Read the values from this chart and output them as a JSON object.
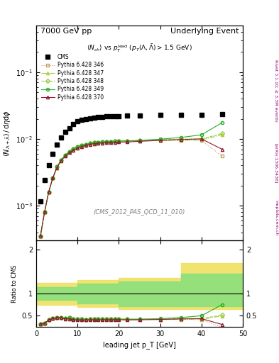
{
  "title_left": "7000 GeV pp",
  "title_right": "Underlying Event",
  "subtitle": "<N_{ch}> vs p_T^{lead} (p_T(Λ,Λ̅) > 1.5 GeV)",
  "watermark": "(CMS_2012_PAS_QCD_11_010)",
  "right_label": "Rivet 3.1.10; ≥ 3.3M events",
  "arxiv_label": "[arXiv:1306.3436]",
  "mcplots_label": "mcplots.cern.ch",
  "ylabel_main": "<N_{Λ+Λ̅}> / dηdφ",
  "ylabel_ratio": "Ratio to CMS",
  "xlabel": "leading jet p_T [GeV]",
  "xlim": [
    0,
    50
  ],
  "ylim_main": [
    0.0003,
    0.5
  ],
  "ylim_ratio": [
    0.25,
    2.2
  ],
  "cms_x": [
    1,
    2,
    3,
    4,
    5,
    6,
    7,
    8,
    9,
    10,
    11,
    12,
    13,
    14,
    15,
    16,
    17,
    18,
    19,
    20,
    22,
    25,
    30,
    35,
    40,
    45
  ],
  "cms_y": [
    0.00115,
    0.0024,
    0.004,
    0.006,
    0.0082,
    0.0105,
    0.0128,
    0.0145,
    0.0167,
    0.0182,
    0.0192,
    0.02,
    0.0205,
    0.021,
    0.0213,
    0.0215,
    0.0216,
    0.0217,
    0.0218,
    0.022,
    0.0223,
    0.0226,
    0.0229,
    0.023,
    0.0231,
    0.0233
  ],
  "p346_x": [
    1,
    2,
    3,
    4,
    5,
    6,
    7,
    8,
    9,
    10,
    11,
    12,
    13,
    14,
    15,
    16,
    17,
    18,
    19,
    20,
    22,
    25,
    30,
    35,
    40,
    45
  ],
  "p346_y": [
    0.00035,
    0.0008,
    0.0016,
    0.0026,
    0.0038,
    0.0048,
    0.0057,
    0.0065,
    0.0071,
    0.0076,
    0.008,
    0.0083,
    0.0086,
    0.0088,
    0.0089,
    0.009,
    0.0091,
    0.00915,
    0.0092,
    0.00925,
    0.0093,
    0.00935,
    0.0094,
    0.00945,
    0.0095,
    0.0055
  ],
  "p346_color": "#c8a060",
  "p346_marker": "s",
  "p346_style": "dotted",
  "p347_x": [
    1,
    2,
    3,
    4,
    5,
    6,
    7,
    8,
    9,
    10,
    11,
    12,
    13,
    14,
    15,
    16,
    17,
    18,
    19,
    20,
    22,
    25,
    30,
    35,
    40,
    45
  ],
  "p347_y": [
    0.00035,
    0.0008,
    0.0016,
    0.0026,
    0.0038,
    0.0048,
    0.0057,
    0.0065,
    0.0071,
    0.0076,
    0.008,
    0.0083,
    0.0086,
    0.0088,
    0.0089,
    0.009,
    0.0091,
    0.00915,
    0.0092,
    0.00925,
    0.00935,
    0.0094,
    0.0095,
    0.0096,
    0.0097,
    0.0115
  ],
  "p347_color": "#b0c840",
  "p347_marker": "^",
  "p347_style": "dashdot",
  "p348_x": [
    1,
    2,
    3,
    4,
    5,
    6,
    7,
    8,
    9,
    10,
    11,
    12,
    13,
    14,
    15,
    16,
    17,
    18,
    19,
    20,
    22,
    25,
    30,
    35,
    40,
    45
  ],
  "p348_y": [
    0.00035,
    0.0008,
    0.0016,
    0.0026,
    0.0038,
    0.0048,
    0.0057,
    0.0065,
    0.0071,
    0.0076,
    0.008,
    0.0083,
    0.0086,
    0.0088,
    0.0089,
    0.009,
    0.0091,
    0.00915,
    0.0092,
    0.00925,
    0.00935,
    0.0095,
    0.0097,
    0.0099,
    0.01,
    0.012
  ],
  "p348_color": "#90d040",
  "p348_marker": "D",
  "p348_style": "dashed",
  "p349_x": [
    1,
    2,
    3,
    4,
    5,
    6,
    7,
    8,
    9,
    10,
    11,
    12,
    13,
    14,
    15,
    16,
    17,
    18,
    19,
    20,
    22,
    25,
    30,
    35,
    40,
    45
  ],
  "p349_y": [
    0.00035,
    0.0008,
    0.0016,
    0.0026,
    0.0038,
    0.0048,
    0.0057,
    0.0065,
    0.0071,
    0.0076,
    0.008,
    0.0083,
    0.0086,
    0.0088,
    0.0089,
    0.009,
    0.0091,
    0.00915,
    0.0092,
    0.00925,
    0.00935,
    0.0095,
    0.0099,
    0.0105,
    0.0115,
    0.0175
  ],
  "p349_color": "#20b020",
  "p349_marker": "o",
  "p349_style": "solid",
  "p370_x": [
    1,
    2,
    3,
    4,
    5,
    6,
    7,
    8,
    9,
    10,
    11,
    12,
    13,
    14,
    15,
    16,
    17,
    18,
    19,
    20,
    22,
    25,
    30,
    35,
    40,
    45
  ],
  "p370_y": [
    0.00035,
    0.0008,
    0.0016,
    0.0026,
    0.0037,
    0.0047,
    0.0055,
    0.0062,
    0.0068,
    0.0073,
    0.0077,
    0.008,
    0.0083,
    0.0085,
    0.0086,
    0.0087,
    0.0088,
    0.00885,
    0.0089,
    0.00895,
    0.009,
    0.0092,
    0.0095,
    0.0098,
    0.01,
    0.007
  ],
  "p370_color": "#901830",
  "p370_marker": "^",
  "p370_style": "solid",
  "ratio_band_yellow_x": [
    0,
    5,
    10,
    20,
    35,
    40,
    50
  ],
  "ratio_band_yellow_lo": [
    0.75,
    0.75,
    0.7,
    0.65,
    0.65,
    0.65,
    0.65
  ],
  "ratio_band_yellow_hi": [
    1.25,
    1.25,
    1.3,
    1.35,
    1.7,
    1.7,
    1.7
  ],
  "ratio_band_green_x": [
    0,
    5,
    10,
    20,
    35,
    40,
    50
  ],
  "ratio_band_green_lo": [
    0.85,
    0.85,
    0.78,
    0.72,
    0.72,
    0.72,
    0.72
  ],
  "ratio_band_green_hi": [
    1.15,
    1.15,
    1.22,
    1.28,
    1.45,
    1.45,
    1.45
  ],
  "bg_color": "#ffffff",
  "plot_bg": "#ffffff",
  "tick_direction": "in"
}
